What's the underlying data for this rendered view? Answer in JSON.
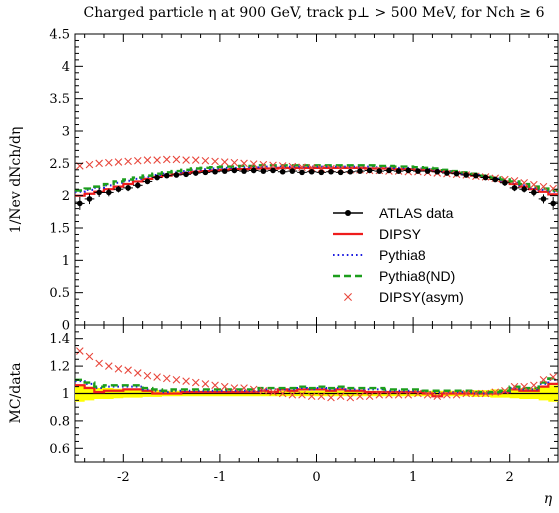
{
  "chart_data": {
    "type": "line",
    "title": "Charged particle η at 900 GeV, track p⊥ > 500 MeV, for Nch ≥ 6",
    "xlabel": "η",
    "ylabel_main": "1/Nev dNch/dη",
    "ylabel_ratio": "MC/data",
    "xlim": [
      -2.5,
      2.5
    ],
    "ylim_main": [
      0,
      4.5
    ],
    "ylim_ratio": [
      0.5,
      1.5
    ],
    "x_ticks": [
      {
        "value": -2,
        "label": "-2"
      },
      {
        "value": -1,
        "label": "-1"
      },
      {
        "value": 0,
        "label": "0"
      },
      {
        "value": 1,
        "label": "1"
      },
      {
        "value": 2,
        "label": "2"
      }
    ],
    "y_ticks_main": [
      {
        "value": 0,
        "label": "0"
      },
      {
        "value": 0.5,
        "label": "0.5"
      },
      {
        "value": 1,
        "label": "1"
      },
      {
        "value": 1.5,
        "label": "1.5"
      },
      {
        "value": 2,
        "label": "2"
      },
      {
        "value": 2.5,
        "label": "2.5"
      },
      {
        "value": 3,
        "label": "3"
      },
      {
        "value": 3.5,
        "label": "3.5"
      },
      {
        "value": 4,
        "label": "4"
      },
      {
        "value": 4.5,
        "label": "4.5"
      }
    ],
    "y_ticks_ratio": [
      {
        "value": 0.6,
        "label": "0.6"
      },
      {
        "value": 0.8,
        "label": "0.8"
      },
      {
        "value": 1,
        "label": "1"
      },
      {
        "value": 1.2,
        "label": "1.2"
      },
      {
        "value": 1.4,
        "label": "1.4"
      }
    ],
    "legend_position": "right-center",
    "bin_edges": [
      -2.5,
      -2.4,
      -2.3,
      -2.2,
      -2.1,
      -2.0,
      -1.9,
      -1.8,
      -1.7,
      -1.6,
      -1.5,
      -1.4,
      -1.3,
      -1.2,
      -1.1,
      -1.0,
      -0.9,
      -0.8,
      -0.7,
      -0.6,
      -0.5,
      -0.4,
      -0.3,
      -0.2,
      -0.1,
      0.0,
      0.1,
      0.2,
      0.3,
      0.4,
      0.5,
      0.6,
      0.7,
      0.8,
      0.9,
      1.0,
      1.1,
      1.2,
      1.3,
      1.4,
      1.5,
      1.6,
      1.7,
      1.8,
      1.9,
      2.0,
      2.1,
      2.2,
      2.3,
      2.4,
      2.5
    ],
    "series": [
      {
        "name": "ATLAS data",
        "key": "data",
        "style": "points",
        "color": "#000000",
        "values": [
          1.88,
          1.95,
          2.05,
          2.05,
          2.1,
          2.12,
          2.16,
          2.22,
          2.28,
          2.31,
          2.32,
          2.33,
          2.35,
          2.36,
          2.37,
          2.38,
          2.39,
          2.38,
          2.39,
          2.38,
          2.39,
          2.37,
          2.38,
          2.36,
          2.37,
          2.36,
          2.37,
          2.36,
          2.37,
          2.38,
          2.39,
          2.38,
          2.39,
          2.38,
          2.39,
          2.38,
          2.38,
          2.37,
          2.35,
          2.34,
          2.32,
          2.31,
          2.28,
          2.25,
          2.2,
          2.12,
          2.1,
          2.05,
          1.95,
          1.88
        ],
        "errors": [
          0.1,
          0.08,
          0.07,
          0.06,
          0.05,
          0.05,
          0.05,
          0.04,
          0.04,
          0.04,
          0.04,
          0.04,
          0.04,
          0.04,
          0.04,
          0.04,
          0.04,
          0.04,
          0.04,
          0.04,
          0.04,
          0.04,
          0.04,
          0.04,
          0.04,
          0.04,
          0.04,
          0.04,
          0.04,
          0.04,
          0.04,
          0.04,
          0.04,
          0.04,
          0.04,
          0.04,
          0.04,
          0.04,
          0.04,
          0.04,
          0.04,
          0.04,
          0.04,
          0.04,
          0.05,
          0.05,
          0.05,
          0.06,
          0.07,
          0.1
        ]
      },
      {
        "name": "DIPSY",
        "key": "dipsy",
        "style": "solid",
        "color": "#ee1c1c",
        "values": [
          2.0,
          2.03,
          2.06,
          2.1,
          2.14,
          2.18,
          2.22,
          2.26,
          2.29,
          2.31,
          2.33,
          2.35,
          2.37,
          2.38,
          2.39,
          2.4,
          2.41,
          2.41,
          2.42,
          2.42,
          2.42,
          2.43,
          2.43,
          2.43,
          2.43,
          2.43,
          2.43,
          2.43,
          2.43,
          2.43,
          2.42,
          2.42,
          2.42,
          2.41,
          2.41,
          2.4,
          2.39,
          2.38,
          2.37,
          2.35,
          2.33,
          2.31,
          2.29,
          2.26,
          2.22,
          2.18,
          2.14,
          2.1,
          2.06,
          2.02
        ],
        "ratio": [
          1.06,
          1.04,
          1.01,
          1.02,
          1.02,
          1.03,
          1.03,
          1.02,
          1.0,
          1.0,
          1.0,
          1.01,
          1.01,
          1.01,
          1.01,
          1.01,
          1.01,
          1.01,
          1.01,
          1.02,
          1.01,
          1.03,
          1.02,
          1.03,
          1.03,
          1.03,
          1.02,
          1.03,
          1.02,
          1.02,
          1.01,
          1.01,
          1.01,
          1.01,
          1.01,
          1.01,
          1.0,
          0.98,
          1.0,
          1.0,
          1.0,
          1.0,
          1.0,
          1.0,
          1.01,
          1.03,
          1.02,
          1.02,
          1.05,
          1.07
        ]
      },
      {
        "name": "Pythia8",
        "key": "pythia8",
        "style": "dotted",
        "color": "#1c1ce0",
        "values": [
          2.06,
          2.09,
          2.12,
          2.16,
          2.2,
          2.23,
          2.26,
          2.29,
          2.32,
          2.34,
          2.36,
          2.38,
          2.4,
          2.41,
          2.42,
          2.43,
          2.43,
          2.44,
          2.44,
          2.45,
          2.45,
          2.45,
          2.45,
          2.45,
          2.45,
          2.45,
          2.45,
          2.45,
          2.45,
          2.45,
          2.45,
          2.44,
          2.44,
          2.43,
          2.43,
          2.42,
          2.41,
          2.4,
          2.38,
          2.36,
          2.34,
          2.32,
          2.29,
          2.26,
          2.23,
          2.2,
          2.16,
          2.12,
          2.09,
          2.06
        ],
        "ratio": [
          1.09,
          1.07,
          1.04,
          1.05,
          1.05,
          1.05,
          1.05,
          1.03,
          1.02,
          1.01,
          1.02,
          1.02,
          1.02,
          1.02,
          1.02,
          1.02,
          1.02,
          1.02,
          1.02,
          1.03,
          1.03,
          1.03,
          1.03,
          1.04,
          1.03,
          1.04,
          1.03,
          1.04,
          1.03,
          1.03,
          1.03,
          1.03,
          1.02,
          1.02,
          1.02,
          1.02,
          1.01,
          1.01,
          1.01,
          1.01,
          1.01,
          1.0,
          1.0,
          1.0,
          1.01,
          1.04,
          1.03,
          1.03,
          1.07,
          1.1
        ]
      },
      {
        "name": "Pythia8(ND)",
        "key": "pythia8nd",
        "style": "dashed",
        "color": "#1c9e1c",
        "values": [
          2.08,
          2.11,
          2.14,
          2.18,
          2.22,
          2.25,
          2.28,
          2.31,
          2.34,
          2.36,
          2.38,
          2.4,
          2.42,
          2.43,
          2.44,
          2.45,
          2.45,
          2.46,
          2.46,
          2.47,
          2.47,
          2.47,
          2.47,
          2.47,
          2.47,
          2.47,
          2.47,
          2.47,
          2.47,
          2.47,
          2.47,
          2.46,
          2.46,
          2.45,
          2.45,
          2.44,
          2.43,
          2.42,
          2.4,
          2.38,
          2.36,
          2.34,
          2.31,
          2.28,
          2.25,
          2.22,
          2.18,
          2.14,
          2.11,
          2.08
        ],
        "ratio": [
          1.1,
          1.08,
          1.05,
          1.06,
          1.06,
          1.06,
          1.06,
          1.04,
          1.03,
          1.02,
          1.03,
          1.03,
          1.03,
          1.03,
          1.03,
          1.03,
          1.03,
          1.03,
          1.03,
          1.04,
          1.04,
          1.04,
          1.04,
          1.05,
          1.04,
          1.05,
          1.04,
          1.05,
          1.04,
          1.04,
          1.04,
          1.04,
          1.03,
          1.03,
          1.03,
          1.03,
          1.02,
          1.02,
          1.02,
          1.02,
          1.02,
          1.01,
          1.01,
          1.01,
          1.02,
          1.05,
          1.04,
          1.04,
          1.08,
          1.11
        ]
      },
      {
        "name": "DIPSY(asym)",
        "key": "dipsyasym",
        "style": "crosses",
        "color": "#e8473c",
        "values": [
          2.46,
          2.48,
          2.5,
          2.51,
          2.52,
          2.53,
          2.54,
          2.55,
          2.55,
          2.56,
          2.56,
          2.55,
          2.55,
          2.54,
          2.53,
          2.52,
          2.51,
          2.5,
          2.49,
          2.48,
          2.47,
          2.46,
          2.45,
          2.44,
          2.43,
          2.42,
          2.42,
          2.41,
          2.4,
          2.4,
          2.39,
          2.39,
          2.38,
          2.38,
          2.37,
          2.37,
          2.36,
          2.35,
          2.34,
          2.33,
          2.32,
          2.3,
          2.29,
          2.27,
          2.25,
          2.23,
          2.2,
          2.17,
          2.14,
          2.11
        ],
        "ratio": [
          1.31,
          1.27,
          1.22,
          1.2,
          1.18,
          1.17,
          1.15,
          1.13,
          1.12,
          1.11,
          1.1,
          1.09,
          1.08,
          1.07,
          1.06,
          1.05,
          1.04,
          1.04,
          1.03,
          1.02,
          1.01,
          1.0,
          0.99,
          0.99,
          0.98,
          0.98,
          0.97,
          0.98,
          0.97,
          0.98,
          0.98,
          0.99,
          0.99,
          0.99,
          0.99,
          1.0,
          0.99,
          0.98,
          0.99,
          0.99,
          1.0,
          1.0,
          1.0,
          1.01,
          1.02,
          1.05,
          1.05,
          1.06,
          1.1,
          1.12
        ]
      }
    ],
    "ratio_band": {
      "color": "#ffff00",
      "half_widths": [
        0.06,
        0.05,
        0.04,
        0.04,
        0.035,
        0.03,
        0.03,
        0.025,
        0.025,
        0.02,
        0.02,
        0.02,
        0.02,
        0.02,
        0.02,
        0.02,
        0.02,
        0.02,
        0.02,
        0.02,
        0.02,
        0.02,
        0.02,
        0.02,
        0.02,
        0.02,
        0.02,
        0.02,
        0.02,
        0.02,
        0.02,
        0.02,
        0.02,
        0.02,
        0.02,
        0.02,
        0.02,
        0.02,
        0.02,
        0.02,
        0.02,
        0.025,
        0.025,
        0.03,
        0.03,
        0.035,
        0.04,
        0.04,
        0.05,
        0.06
      ]
    }
  }
}
